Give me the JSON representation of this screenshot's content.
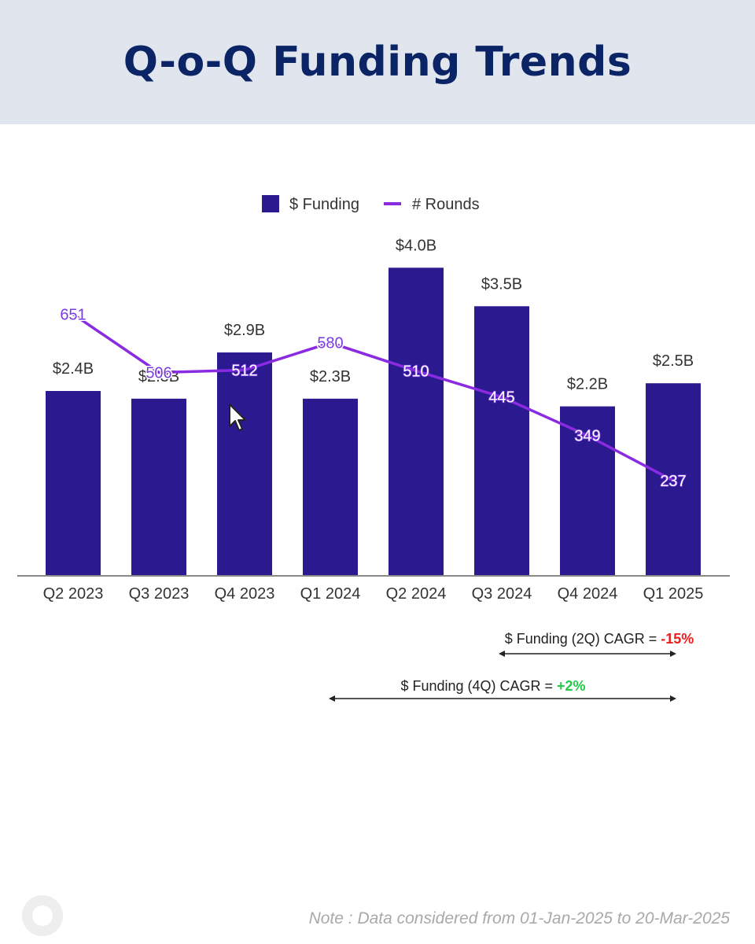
{
  "header": {
    "title": "Q-o-Q Funding Trends"
  },
  "chart_data": {
    "type": "bar",
    "categories": [
      "Q2 2023",
      "Q3 2023",
      "Q4 2023",
      "Q1 2024",
      "Q2 2024",
      "Q3 2024",
      "Q4 2024",
      "Q1 2025"
    ],
    "series": [
      {
        "name": "$ Funding",
        "type": "bar",
        "values": [
          2.4,
          2.3,
          2.9,
          2.3,
          4.0,
          3.5,
          2.2,
          2.5
        ],
        "labels": [
          "$2.4B",
          "$2.3B",
          "$2.9B",
          "$2.3B",
          "$4.0B",
          "$3.5B",
          "$2.2B",
          "$2.5B"
        ],
        "color": "#2b1a8f"
      },
      {
        "name": "# Rounds",
        "type": "line",
        "values": [
          651,
          506,
          512,
          580,
          510,
          445,
          349,
          237
        ],
        "labels": [
          "651",
          "506",
          "512",
          "580",
          "510",
          "445",
          "349",
          "237"
        ],
        "color": "#8a2be2"
      }
    ],
    "legend": "top-center",
    "grid": false,
    "ylim": [
      0,
      4.8
    ],
    "y2lim": [
      0,
      920
    ],
    "annotations": {
      "cagr_2q": {
        "text": "$ Funding (2Q) CAGR = ",
        "value": "-15%",
        "color": "#ee1c1c",
        "from": "Q3 2024",
        "to": "Q1 2025"
      },
      "cagr_4q": {
        "text": "$ Funding (4Q) CAGR = ",
        "value": "+2%",
        "color": "#22cc44",
        "from": "Q1 2024",
        "to": "Q1 2025"
      }
    }
  },
  "footer": {
    "note": "Note : Data considered from 01-Jan-2025 to 20-Mar-2025"
  },
  "logo": {
    "icon": "brand-logo-icon"
  },
  "pointer": {
    "icon": "mouse-pointer-icon"
  }
}
